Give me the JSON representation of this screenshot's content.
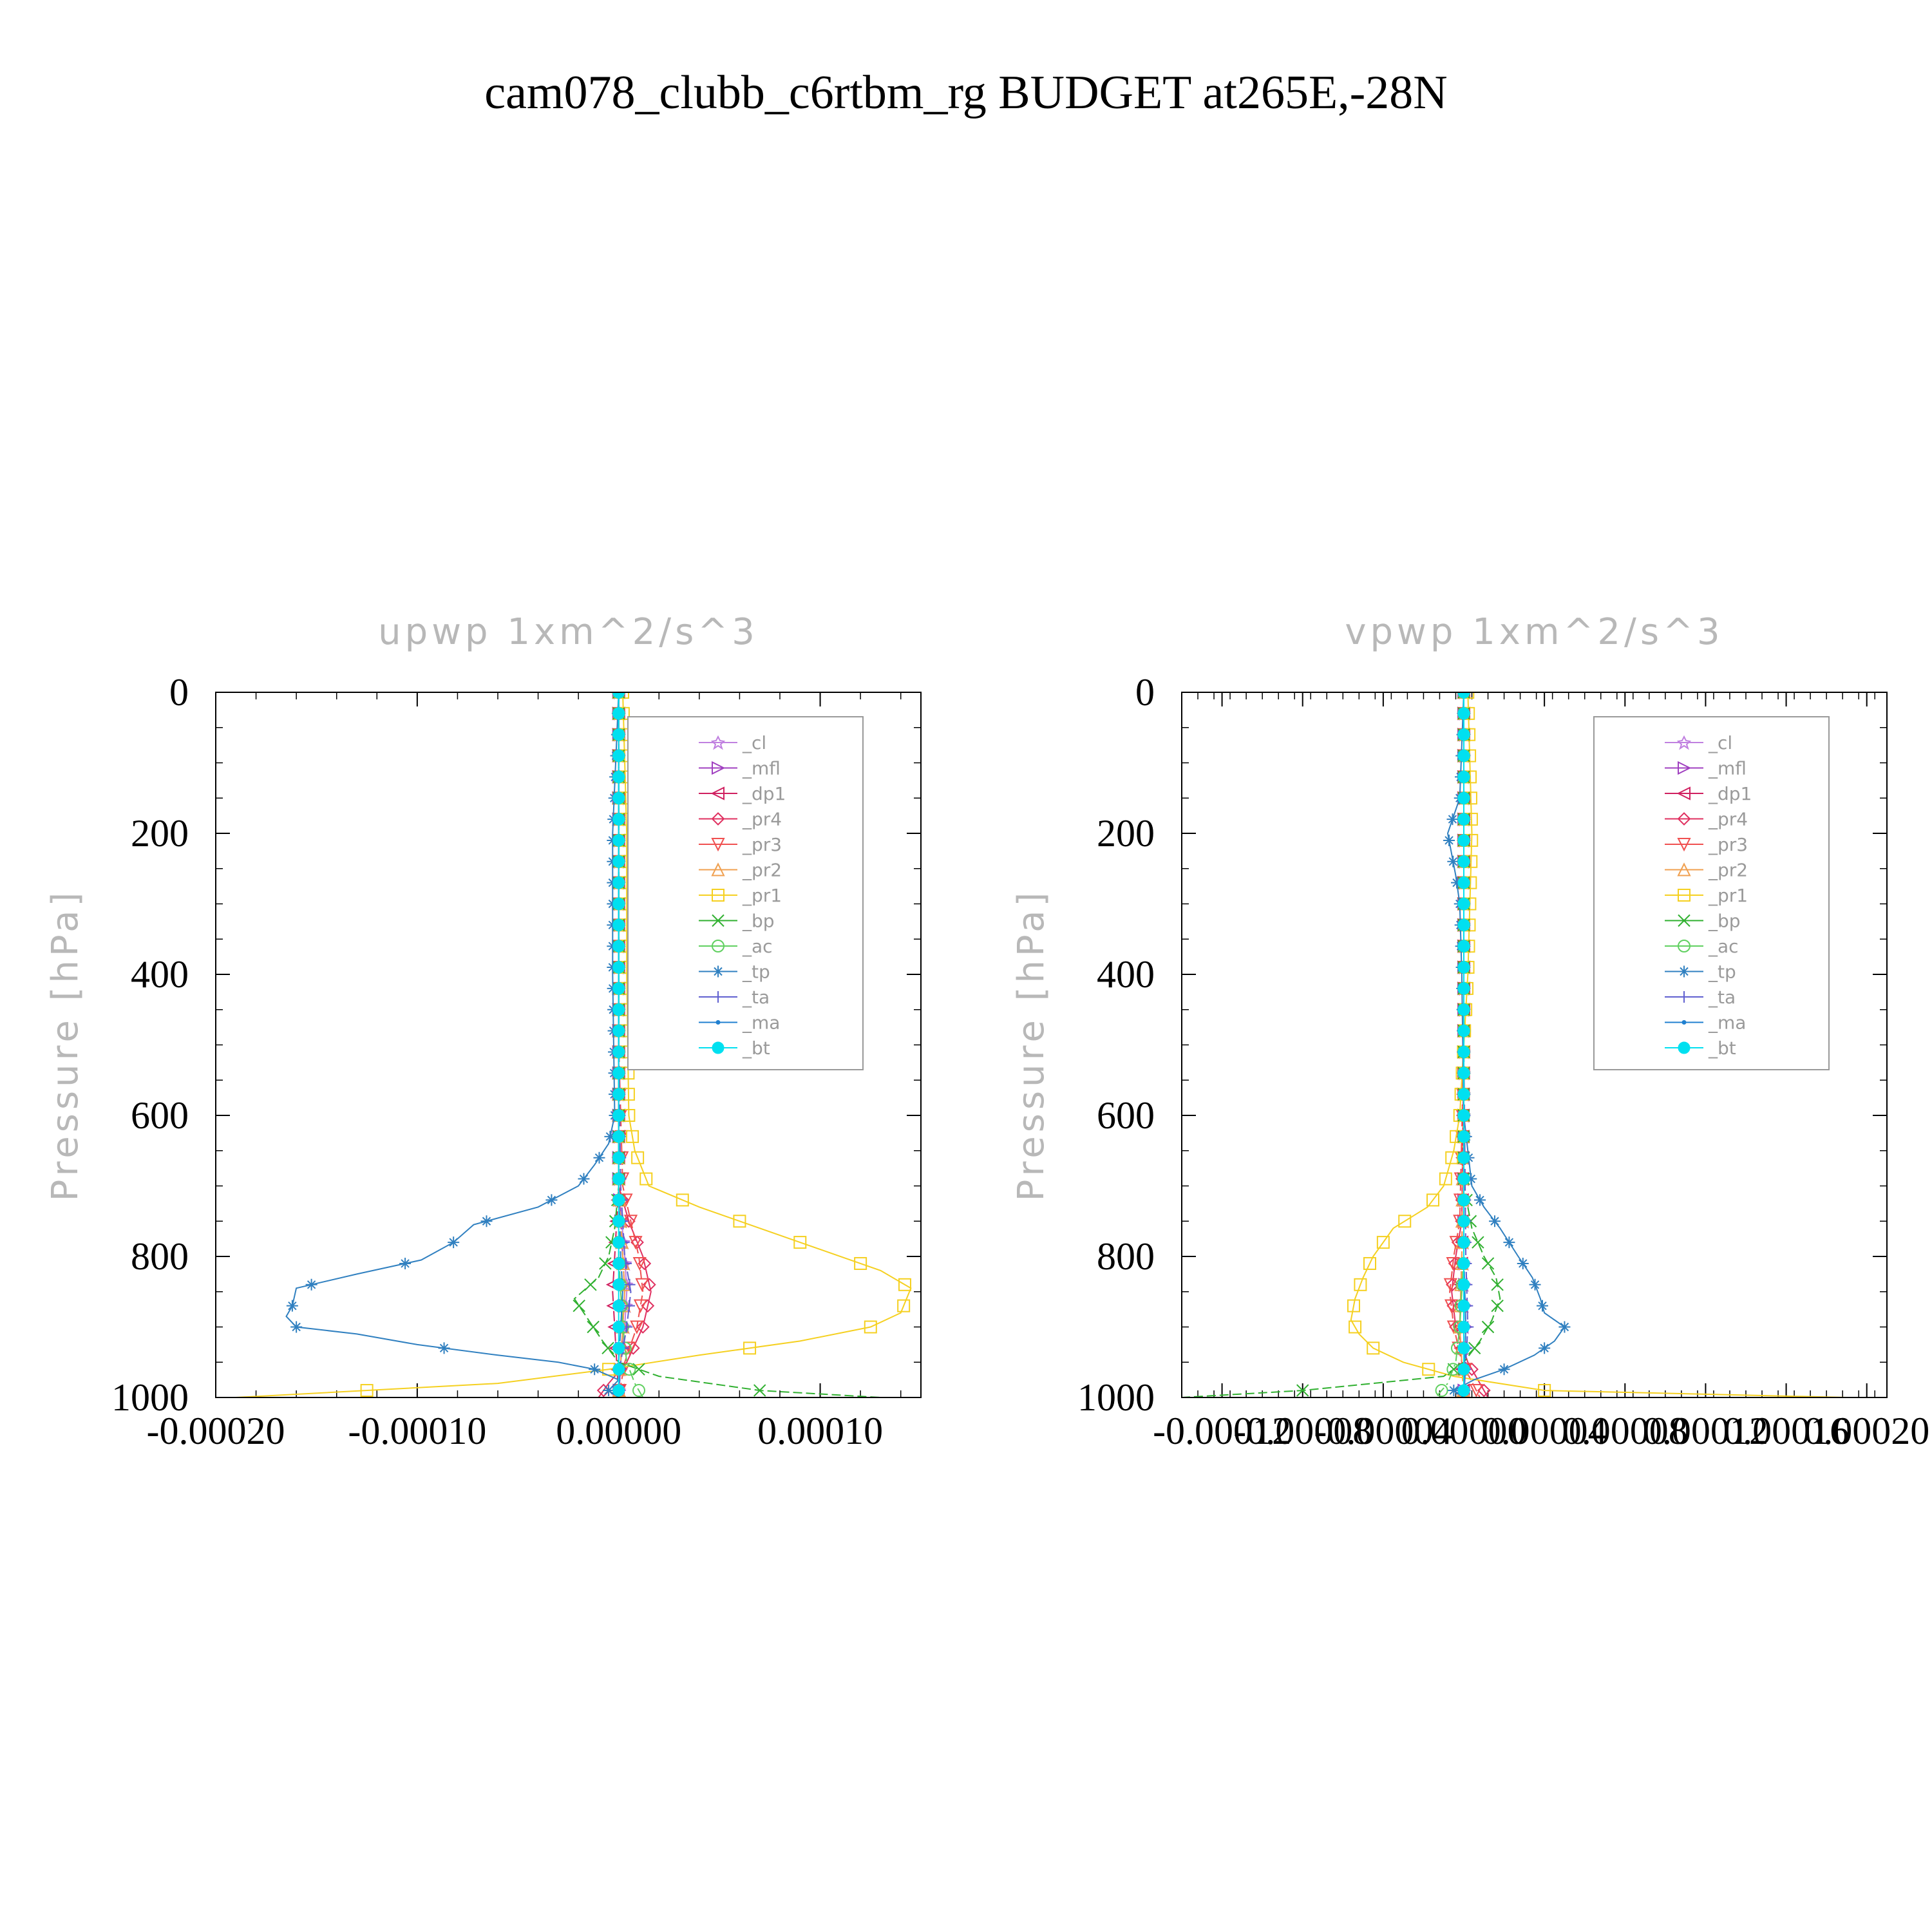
{
  "title": "cam078_clubb_c6rtbm_rg  BUDGET at265E,-28N",
  "chart_data": [
    {
      "type": "line",
      "title": "upwp   1xm^2/s^3",
      "ylabel": "Pressure [hPa]",
      "xlim": [
        -0.0002,
        0.00015
      ],
      "ylim": [
        1000,
        0
      ],
      "xticks": [
        -0.0002,
        -0.0001,
        0.0,
        0.0001
      ],
      "xtick_labels": [
        "-0.00020",
        "-0.00010",
        "0.00000",
        "0.00010"
      ],
      "yticks": [
        0,
        200,
        400,
        600,
        800,
        1000
      ],
      "ytick_labels": [
        "0",
        "200",
        "400",
        "600",
        "800",
        "1000"
      ],
      "legend_position": "upper-right",
      "series": [
        {
          "name": "_cl",
          "color": "#c080e0",
          "marker": "star",
          "p": [
            0,
            500,
            700,
            800,
            850,
            900,
            950,
            1000
          ],
          "values": [
            0,
            0,
            0,
            3e-06,
            4e-06,
            3e-06,
            1e-06,
            0
          ]
        },
        {
          "name": "_mfl",
          "color": "#a040c0",
          "marker": "tri-right",
          "p": [
            0,
            500,
            700,
            800,
            850,
            900,
            950,
            1000
          ],
          "values": [
            0,
            0,
            0,
            2e-06,
            3e-06,
            2e-06,
            1e-06,
            0
          ]
        },
        {
          "name": "_dp1",
          "color": "#d02060",
          "marker": "tri-left",
          "p": [
            0,
            500,
            700,
            800,
            850,
            900,
            950,
            1000
          ],
          "values": [
            0,
            0,
            0,
            -2e-06,
            -3e-06,
            -2e-06,
            -1e-06,
            0
          ]
        },
        {
          "name": "_pr4",
          "color": "#e03060",
          "marker": "diamond",
          "p": [
            0,
            500,
            700,
            750,
            800,
            850,
            900,
            950,
            980,
            1000
          ],
          "values": [
            0,
            0,
            0,
            5e-06,
            1.2e-05,
            1.6e-05,
            1.2e-05,
            4e-06,
            -5e-06,
            -1e-05
          ]
        },
        {
          "name": "_pr3",
          "color": "#f05050",
          "marker": "tri-down",
          "p": [
            0,
            500,
            700,
            750,
            800,
            850,
            900,
            950,
            1000
          ],
          "values": [
            0,
            0,
            2e-06,
            6e-06,
            1e-05,
            1.2e-05,
            9e-06,
            3e-06,
            0
          ]
        },
        {
          "name": "_pr2",
          "color": "#f0a050",
          "marker": "tri-up",
          "p": [
            0,
            500,
            700,
            800,
            850,
            900,
            950,
            1000
          ],
          "values": [
            0,
            0,
            0,
            2e-06,
            3e-06,
            2e-06,
            1e-06,
            0
          ]
        },
        {
          "name": "_pr1",
          "color": "#f5d020",
          "marker": "square",
          "p": [
            0,
            200,
            400,
            600,
            650,
            700,
            730,
            760,
            790,
            820,
            845,
            880,
            900,
            920,
            940,
            960,
            980,
            1000
          ],
          "values": [
            2e-06,
            4e-06,
            4e-06,
            5e-06,
            8e-06,
            1.5e-05,
            4e-05,
            7e-05,
            0.0001,
            0.00013,
            0.000145,
            0.00014,
            0.000125,
            9e-05,
            4e-05,
            -5e-06,
            -6e-05,
            -0.00019
          ]
        },
        {
          "name": "_bp",
          "color": "#30b030",
          "marker": "cross",
          "p": [
            0,
            500,
            700,
            760,
            800,
            830,
            860,
            890,
            920,
            950,
            970,
            990,
            1000
          ],
          "values": [
            0,
            0,
            0,
            -2e-06,
            -5e-06,
            -1e-05,
            -2.2e-05,
            -1.5e-05,
            -8e-06,
            0,
            2e-05,
            7e-05,
            0.00013
          ]
        },
        {
          "name": "_ac",
          "color": "#60d060",
          "marker": "circle",
          "p": [
            0,
            500,
            800,
            900,
            950,
            980,
            1000
          ],
          "values": [
            0,
            0,
            0,
            2e-06,
            4e-06,
            8e-06,
            1.2e-05
          ]
        },
        {
          "name": "_tp",
          "color": "#3080c0",
          "marker": "asterisk",
          "p": [
            0,
            200,
            400,
            600,
            640,
            670,
            700,
            730,
            755,
            780,
            805,
            825,
            845,
            870,
            885,
            900,
            910,
            925,
            940,
            950,
            960,
            975,
            990,
            1000
          ],
          "values": [
            0,
            -3e-06,
            -3e-06,
            -2e-06,
            -5e-06,
            -1.2e-05,
            -2e-05,
            -4e-05,
            -7.2e-05,
            -8.2e-05,
            -9.8e-05,
            -0.00013,
            -0.00016,
            -0.000162,
            -0.000165,
            -0.00016,
            -0.00013,
            -0.0001,
            -6e-05,
            -3e-05,
            -1.2e-05,
            0,
            -5e-06,
            0
          ]
        },
        {
          "name": "_ta",
          "color": "#6060d0",
          "marker": "plus",
          "p": [
            0,
            500,
            700,
            800,
            850,
            900,
            950,
            1000
          ],
          "values": [
            0,
            0,
            1e-06,
            3e-06,
            6e-06,
            4e-06,
            1e-06,
            0
          ]
        },
        {
          "name": "_ma",
          "color": "#2080d0",
          "marker": "dot",
          "p": [
            0,
            500,
            700,
            800,
            850,
            900,
            950,
            1000
          ],
          "values": [
            0,
            0,
            0,
            1e-06,
            2e-06,
            1e-06,
            0,
            0
          ]
        },
        {
          "name": "_bt",
          "color": "#00e0f0",
          "marker": "filled-circle",
          "p": [
            0,
            500,
            800,
            900,
            1000
          ],
          "values": [
            0,
            0,
            0,
            0,
            0
          ]
        }
      ]
    },
    {
      "type": "line",
      "title": "vpwp   1xm^2/s^3",
      "ylabel": "Pressure [hPa]",
      "xlim": [
        -0.00014,
        0.00021
      ],
      "ylim": [
        1000,
        0
      ],
      "xticks": [
        -0.00012,
        -8e-05,
        -4e-05,
        0.0,
        4e-05,
        8e-05,
        0.00012,
        0.00016,
        0.0002
      ],
      "xtick_labels": [
        "-0.00012",
        "-0.00008",
        "-0.00004",
        "0.00000",
        "0.00004",
        "0.00008",
        "0.00012",
        "0.00016",
        "0.00020"
      ],
      "yticks": [
        0,
        200,
        400,
        600,
        800,
        1000
      ],
      "ytick_labels": [
        "0",
        "200",
        "400",
        "600",
        "800",
        "1000"
      ],
      "legend_position": "upper-right",
      "series": [
        {
          "name": "_cl",
          "color": "#c080e0",
          "marker": "star",
          "p": [
            0,
            500,
            800,
            900,
            1000
          ],
          "values": [
            0,
            0,
            0,
            0,
            0
          ]
        },
        {
          "name": "_mfl",
          "color": "#a040c0",
          "marker": "tri-right",
          "p": [
            0,
            500,
            800,
            900,
            1000
          ],
          "values": [
            0,
            0,
            0,
            1e-06,
            0
          ]
        },
        {
          "name": "_dp1",
          "color": "#d02060",
          "marker": "tri-left",
          "p": [
            0,
            500,
            800,
            900,
            1000
          ],
          "values": [
            0,
            0,
            -1e-06,
            -2e-06,
            0
          ]
        },
        {
          "name": "_pr4",
          "color": "#e03060",
          "marker": "diamond",
          "p": [
            0,
            500,
            750,
            800,
            850,
            900,
            950,
            1000
          ],
          "values": [
            0,
            0,
            -1e-06,
            -4e-06,
            -6e-06,
            -4e-06,
            2e-06,
            1.2e-05
          ]
        },
        {
          "name": "_pr3",
          "color": "#f05050",
          "marker": "tri-down",
          "p": [
            0,
            500,
            750,
            800,
            850,
            900,
            950,
            1000
          ],
          "values": [
            0,
            0,
            -2e-06,
            -5e-06,
            -7e-06,
            -5e-06,
            -1e-06,
            8e-06
          ]
        },
        {
          "name": "_pr2",
          "color": "#f0a050",
          "marker": "tri-up",
          "p": [
            0,
            500,
            800,
            900,
            1000
          ],
          "values": [
            0,
            0,
            -1e-06,
            -2e-06,
            0
          ]
        },
        {
          "name": "_pr1",
          "color": "#f5d020",
          "marker": "square",
          "p": [
            0,
            200,
            400,
            600,
            650,
            700,
            730,
            760,
            800,
            830,
            860,
            890,
            910,
            930,
            950,
            970,
            990,
            1000
          ],
          "values": [
            2e-06,
            4e-06,
            2e-06,
            -2e-06,
            -5e-06,
            -1e-05,
            -1.8e-05,
            -3.5e-05,
            -4.5e-05,
            -5e-05,
            -5.4e-05,
            -5.6e-05,
            -5.2e-05,
            -4.5e-05,
            -3e-05,
            -5e-06,
            4e-05,
            0.00019
          ]
        },
        {
          "name": "_bp",
          "color": "#30b030",
          "marker": "cross",
          "p": [
            0,
            500,
            700,
            760,
            800,
            830,
            860,
            890,
            920,
            950,
            970,
            990,
            1000
          ],
          "values": [
            0,
            0,
            0,
            4e-06,
            1e-05,
            1.6e-05,
            1.8e-05,
            1.4e-05,
            8e-06,
            0,
            -1e-05,
            -8e-05,
            -0.00014
          ]
        },
        {
          "name": "_ac",
          "color": "#60d060",
          "marker": "circle",
          "p": [
            0,
            500,
            800,
            900,
            950,
            980,
            1000
          ],
          "values": [
            0,
            0,
            0,
            -2e-06,
            -4e-06,
            -8e-06,
            -1.4e-05
          ]
        },
        {
          "name": "_tp",
          "color": "#3080c0",
          "marker": "asterisk",
          "p": [
            0,
            150,
            200,
            260,
            300,
            400,
            600,
            700,
            730,
            760,
            800,
            830,
            860,
            880,
            900,
            920,
            940,
            960,
            975,
            990,
            1000
          ],
          "values": [
            0,
            -2e-06,
            -8e-06,
            -4e-06,
            -2e-06,
            -1e-06,
            0,
            4e-06,
            1e-05,
            1.8e-05,
            2.7e-05,
            3.4e-05,
            3.8e-05,
            4e-05,
            5e-05,
            4.5e-05,
            3.5e-05,
            2e-05,
            5e-06,
            -5e-06,
            0
          ]
        },
        {
          "name": "_ta",
          "color": "#6060d0",
          "marker": "plus",
          "p": [
            0,
            500,
            800,
            900,
            1000
          ],
          "values": [
            0,
            0,
            1e-06,
            2e-06,
            0
          ]
        },
        {
          "name": "_ma",
          "color": "#2080d0",
          "marker": "dot",
          "p": [
            0,
            500,
            800,
            900,
            1000
          ],
          "values": [
            0,
            0,
            0,
            1e-06,
            0
          ]
        },
        {
          "name": "_bt",
          "color": "#00e0f0",
          "marker": "filled-circle",
          "p": [
            0,
            500,
            800,
            900,
            1000
          ],
          "values": [
            0,
            0,
            0,
            0,
            0
          ]
        }
      ]
    }
  ]
}
